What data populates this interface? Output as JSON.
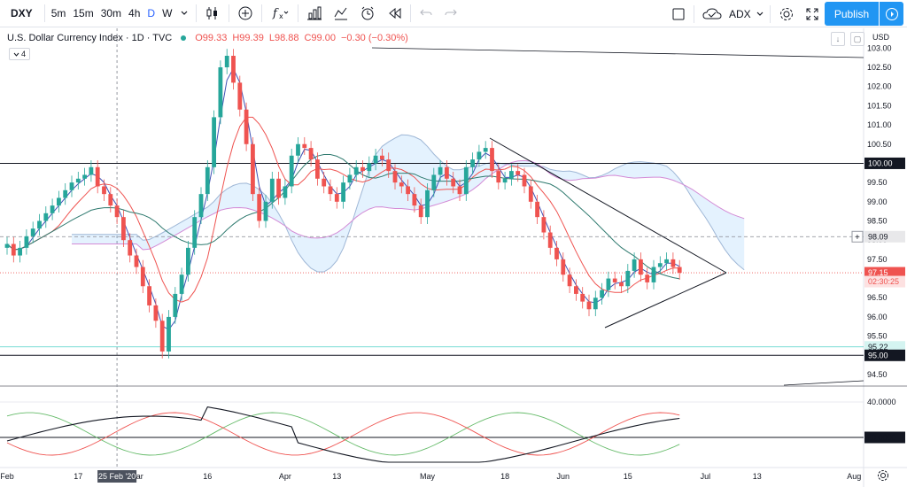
{
  "toolbar": {
    "symbol": "DXY",
    "intervals": [
      "5m",
      "15m",
      "30m",
      "4h",
      "D",
      "W"
    ],
    "active_interval": "D",
    "compare_label": "ADX",
    "publish_label": "Publish"
  },
  "legend": {
    "name": "U.S. Dollar Currency Index · 1D · TVC",
    "open": "O99.33",
    "high": "H99.39",
    "low": "L98.88",
    "close": "C99.00",
    "change": "−0.30 (−0.30%)",
    "indicator_count": "4",
    "currency": "USD"
  },
  "price_axis": {
    "ticks": [
      "103.00",
      "102.50",
      "102.00",
      "101.50",
      "101.00",
      "100.50",
      "100.00",
      "99.50",
      "99.00",
      "98.50",
      "98.00",
      "97.50",
      "97.00",
      "96.50",
      "96.00",
      "95.50",
      "95.00",
      "94.50"
    ],
    "labels": [
      {
        "text": "100.00",
        "value": 100.0,
        "style": "dark"
      },
      {
        "text": "98.09",
        "value": 98.09,
        "style": "grey"
      },
      {
        "text": "97.15",
        "value": 97.15,
        "style": "red"
      },
      {
        "text": "02:30:25",
        "value": 96.92,
        "style": "red-light"
      },
      {
        "text": "95.22",
        "value": 95.22,
        "style": "teal"
      },
      {
        "text": "95.00",
        "value": 95.0,
        "style": "dark"
      }
    ]
  },
  "adx_axis": {
    "ticks": [
      "40.0000",
      "20.0000"
    ]
  },
  "time_axis": {
    "ticks": [
      {
        "label": "Feb",
        "day": 0
      },
      {
        "label": "17",
        "day": 11
      },
      {
        "label": "Mar",
        "day": 20
      },
      {
        "label": "16",
        "day": 31
      },
      {
        "label": "Apr",
        "day": 43
      },
      {
        "label": "13",
        "day": 51
      },
      {
        "label": "May",
        "day": 65
      },
      {
        "label": "18",
        "day": 77
      },
      {
        "label": "Jun",
        "day": 86
      },
      {
        "label": "15",
        "day": 96
      },
      {
        "label": "Jul",
        "day": 108
      },
      {
        "label": "13",
        "day": 116
      },
      {
        "label": "Aug",
        "day": 131
      }
    ],
    "crosshair_label": "25 Feb '20",
    "crosshair_day": 17
  },
  "colors": {
    "up": "#26a69a",
    "down": "#ef5350",
    "accent": "#2962ff",
    "publish": "#2196f3"
  },
  "chart_data": {
    "type": "candlestick",
    "symbol": "U.S. Dollar Currency Index",
    "timeframe": "1D",
    "ylim": [
      94.2,
      103.1
    ],
    "horizontal_levels": [
      100.0,
      98.09,
      97.15,
      95.22,
      95.0
    ],
    "candles_close": [
      97.9,
      97.6,
      97.8,
      98.1,
      98.3,
      98.5,
      98.7,
      98.9,
      99.1,
      99.3,
      99.5,
      99.6,
      99.7,
      99.9,
      99.4,
      99.2,
      98.9,
      98.6,
      98.0,
      97.6,
      97.3,
      96.8,
      96.3,
      95.9,
      95.1,
      96.0,
      96.6,
      97.1,
      97.8,
      98.6,
      99.2,
      99.9,
      101.2,
      102.5,
      102.8,
      102.1,
      101.4,
      100.5,
      99.2,
      98.5,
      99.0,
      99.6,
      99.1,
      99.4,
      100.2,
      100.5,
      100.4,
      100.1,
      99.6,
      99.4,
      99.2,
      99.0,
      99.5,
      99.7,
      99.9,
      99.8,
      100.0,
      100.2,
      100.1,
      99.8,
      99.5,
      99.4,
      99.2,
      98.9,
      98.6,
      99.3,
      99.7,
      99.9,
      99.6,
      99.4,
      99.2,
      99.9,
      100.1,
      100.3,
      100.4,
      99.8,
      99.5,
      99.6,
      99.8,
      99.7,
      99.4,
      99.0,
      98.6,
      98.2,
      97.8,
      97.5,
      97.1,
      96.8,
      96.6,
      96.4,
      96.2,
      96.5,
      96.7,
      97.0,
      96.9,
      96.8,
      97.2,
      97.5,
      97.1,
      96.9,
      97.3,
      97.4,
      97.5,
      97.3,
      97.15
    ],
    "adx_series": {
      "name": "ADX",
      "levels": [
        40,
        20
      ]
    }
  }
}
